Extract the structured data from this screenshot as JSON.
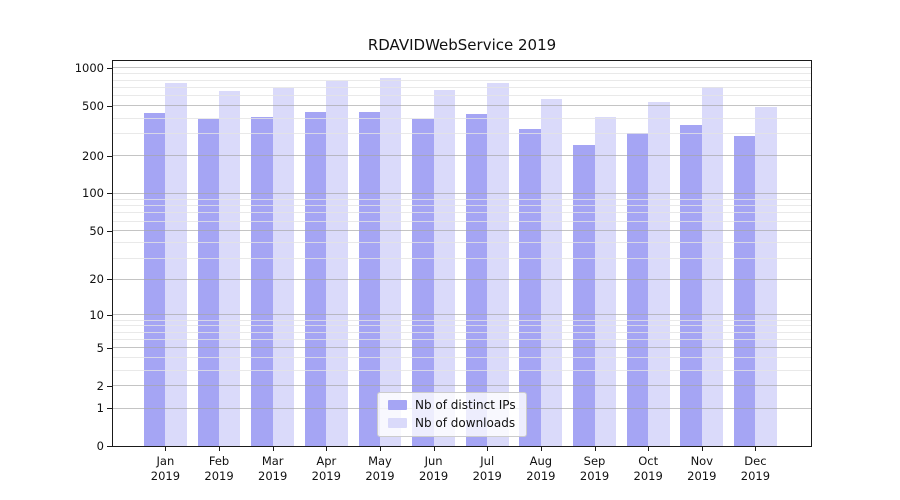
{
  "chart_data": {
    "type": "bar",
    "title": "RDAVIDWebService 2019",
    "categories": [
      "Jan 2019",
      "Feb 2019",
      "Mar 2019",
      "Apr 2019",
      "May 2019",
      "Jun 2019",
      "Jul 2019",
      "Aug 2019",
      "Sep 2019",
      "Oct 2019",
      "Nov 2019",
      "Dec 2019"
    ],
    "series": [
      {
        "name": "Nb of distinct IPs",
        "color": "#a5a5f4",
        "values": [
          435,
          395,
          410,
          450,
          445,
          395,
          430,
          330,
          245,
          305,
          350,
          285
        ]
      },
      {
        "name": "Nb of downloads",
        "color": "#dadafa",
        "values": [
          755,
          655,
          690,
          790,
          830,
          665,
          755,
          565,
          410,
          540,
          710,
          490
        ]
      }
    ],
    "xlabel": "",
    "ylabel": "",
    "yscale": "log1p",
    "yticks": [
      0,
      1,
      2,
      5,
      10,
      20,
      50,
      100,
      200,
      500,
      1000
    ],
    "yticks_minor": [
      3,
      4,
      6,
      7,
      8,
      9,
      30,
      40,
      60,
      70,
      80,
      90,
      300,
      400,
      600,
      700,
      800,
      900
    ],
    "ylim": [
      0,
      1050
    ],
    "grid": true,
    "legend_position": "lower center"
  },
  "colors": {
    "grid_major": "rgba(165,165,165,0.65)",
    "grid_minor": "rgba(228,228,228,0.8)",
    "axis": "#1a1a1a",
    "text": "#111111",
    "legend_border": "#cccccc"
  }
}
